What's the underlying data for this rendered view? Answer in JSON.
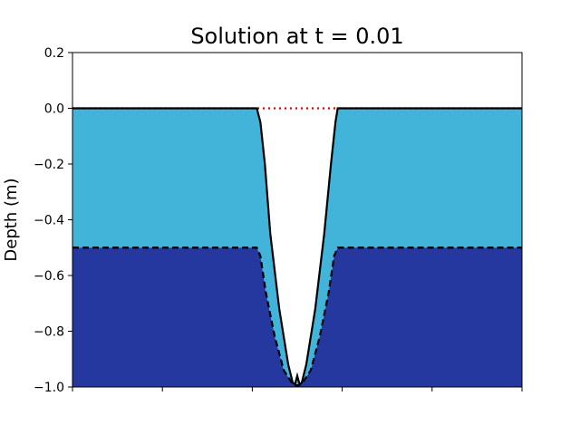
{
  "chart_data": {
    "type": "area",
    "title": "Solution at t = 0.01",
    "xlabel": "",
    "ylabel": "Depth (m)",
    "xlim": [
      0,
      1
    ],
    "ylim": [
      -1.0,
      0.2
    ],
    "xticks": [
      0,
      0.2,
      0.4,
      0.6,
      0.8,
      1.0
    ],
    "yticks": [
      {
        "value": 0.2,
        "label": "0.2"
      },
      {
        "value": 0.0,
        "label": "0.0"
      },
      {
        "value": -0.2,
        "label": "−0.2"
      },
      {
        "value": -0.4,
        "label": "−0.4"
      },
      {
        "value": -0.6,
        "label": "−0.6"
      },
      {
        "value": -0.8,
        "label": "−0.8"
      },
      {
        "value": -1.0,
        "label": "−1.0"
      }
    ],
    "grid": false,
    "colors": {
      "upper_layer": "#42b4da",
      "lower_layer": "#2538a0",
      "surface_line": "#e00000",
      "outline": "#000000"
    },
    "series": [
      {
        "style": "dotted-red",
        "x": [
          0.0,
          1.0
        ],
        "y": [
          0.0,
          0.0
        ]
      },
      {
        "style": "solid-black",
        "x": [
          0.0,
          0.2,
          0.41,
          0.418,
          0.428,
          0.44,
          0.46,
          0.48,
          0.49,
          0.495,
          0.5,
          0.505,
          0.51,
          0.52,
          0.54,
          0.56,
          0.575,
          0.585,
          0.59,
          0.6,
          0.8,
          1.0
        ],
        "y": [
          0.0,
          0.0,
          0.0,
          -0.05,
          -0.2,
          -0.45,
          -0.72,
          -0.92,
          -0.985,
          -0.99,
          -0.96,
          -0.99,
          -0.985,
          -0.92,
          -0.72,
          -0.45,
          -0.2,
          -0.05,
          0.0,
          0.0,
          0.0,
          0.0
        ]
      },
      {
        "style": "dashed-black",
        "x": [
          0.0,
          0.2,
          0.41,
          0.418,
          0.43,
          0.45,
          0.47,
          0.49,
          0.5,
          0.51,
          0.53,
          0.55,
          0.57,
          0.582,
          0.59,
          0.6,
          0.8,
          1.0
        ],
        "y": [
          -0.5,
          -0.5,
          -0.5,
          -0.53,
          -0.66,
          -0.82,
          -0.94,
          -0.99,
          -0.995,
          -0.99,
          -0.94,
          -0.82,
          -0.66,
          -0.53,
          -0.5,
          -0.5,
          -0.5,
          -0.5
        ]
      }
    ]
  }
}
